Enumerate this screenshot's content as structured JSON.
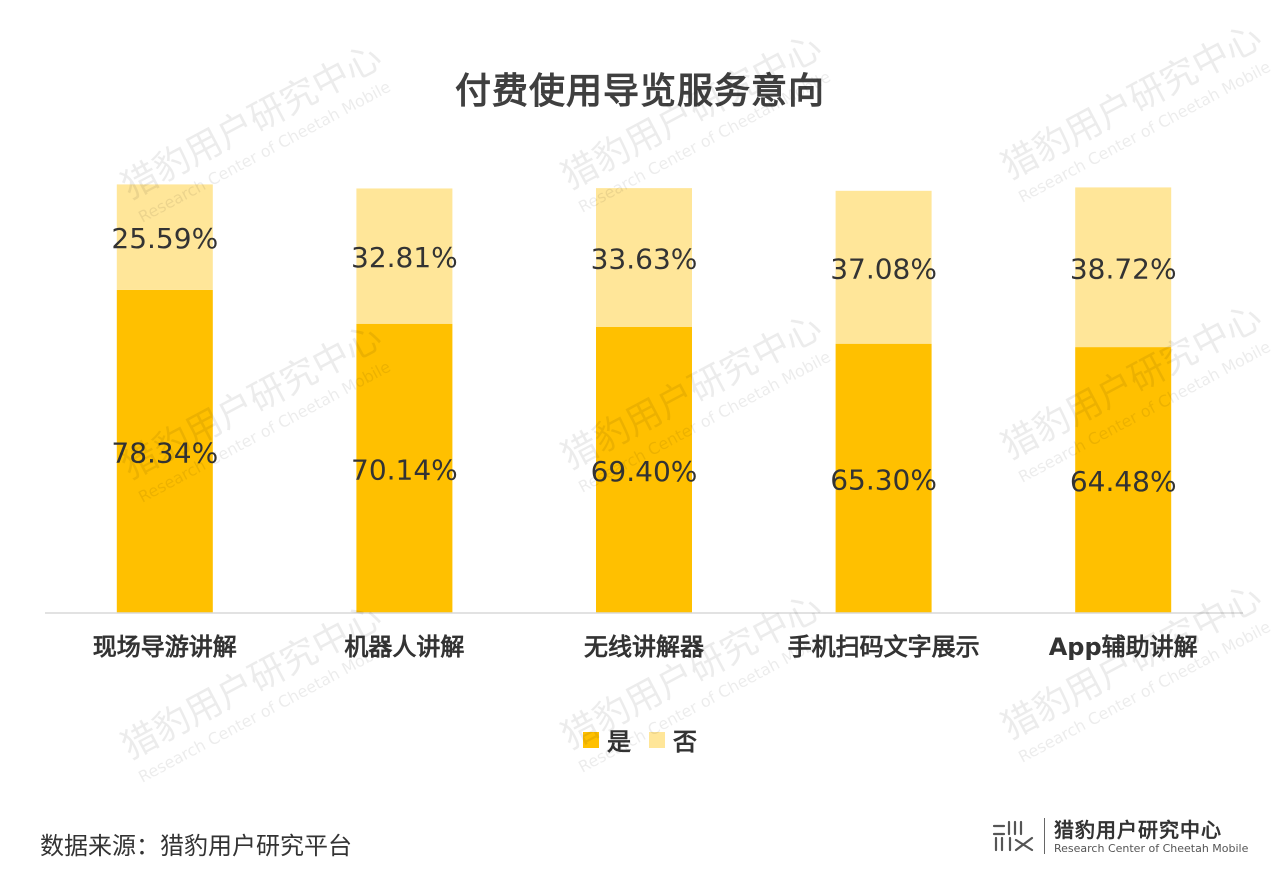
{
  "chart_data": {
    "type": "bar",
    "title": "付费使用导览服务意向",
    "categories": [
      "现场导游讲解",
      "机器人讲解",
      "无线讲解器",
      "手机扫码文字展示",
      "App辅助讲解"
    ],
    "series": [
      {
        "name": "是",
        "values": [
          78.34,
          70.14,
          69.4,
          65.3,
          64.48
        ],
        "labels": [
          "78.34%",
          "70.14%",
          "69.40%",
          "65.30%",
          "64.48%"
        ],
        "color": "#FFC000"
      },
      {
        "name": "否",
        "values": [
          25.59,
          32.81,
          33.63,
          37.08,
          38.72
        ],
        "labels": [
          "25.59%",
          "32.81%",
          "33.63%",
          "37.08%",
          "38.72%"
        ],
        "color": "#FFE699"
      }
    ],
    "stacked": true,
    "ylim": [
      0,
      105
    ],
    "grid": false,
    "legend_position": "bottom"
  },
  "source": "数据来源：猎豹用户研究平台",
  "brand": {
    "name": "猎豹用户研究中心",
    "subtitle": "Research Center of Cheetah Mobile"
  },
  "watermark": {
    "text": "猎豹用户研究中心",
    "subtext": "Research Center of Cheetah Mobile"
  },
  "colors": {
    "title": "#3F3F3F",
    "text": "#333333",
    "axis": "#D9D9D9"
  }
}
